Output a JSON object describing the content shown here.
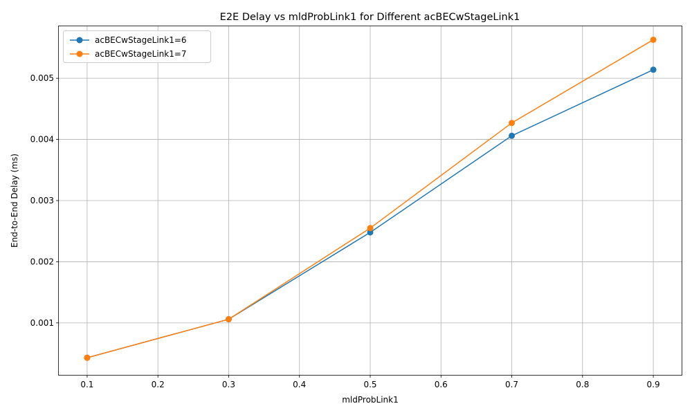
{
  "chart_data": {
    "type": "line",
    "title": "E2E Delay vs mldProbLink1 for Different acBECwStageLink1",
    "xlabel": "mldProbLink1",
    "ylabel": "End-to-End Delay (ms)",
    "x": [
      0.1,
      0.3,
      0.5,
      0.7,
      0.9
    ],
    "xlim": [
      0.06,
      0.94
    ],
    "ylim": [
      0.00015,
      0.00585
    ],
    "xticks": [
      0.1,
      0.2,
      0.3,
      0.4,
      0.5,
      0.6,
      0.7,
      0.8,
      0.9
    ],
    "xtick_labels": [
      "0.1",
      "0.2",
      "0.3",
      "0.4",
      "0.5",
      "0.6",
      "0.7",
      "0.8",
      "0.9"
    ],
    "yticks": [
      0.001,
      0.002,
      0.003,
      0.004,
      0.005
    ],
    "ytick_labels": [
      "0.001",
      "0.002",
      "0.003",
      "0.004",
      "0.005"
    ],
    "grid": true,
    "legend_position": "top-left",
    "series": [
      {
        "name": "acBECwStageLink1=6",
        "color": "#1f77b4",
        "marker": "circle",
        "values": [
          0.00043,
          0.00106,
          0.00248,
          0.00406,
          0.00514
        ]
      },
      {
        "name": "acBECwStageLink1=7",
        "color": "#ff7f0e",
        "marker": "circle",
        "values": [
          0.00043,
          0.00106,
          0.00255,
          0.00427,
          0.00563
        ]
      }
    ]
  }
}
